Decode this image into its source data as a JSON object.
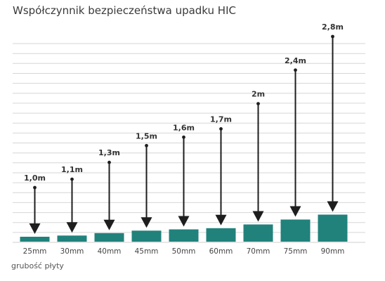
{
  "chart_data": {
    "type": "bar",
    "title": "Współczynnik bezpieczeństwa upadku HIC",
    "xlabel": "grubość płyty",
    "ylabel": "",
    "categories": [
      "25mm",
      "30mm",
      "40mm",
      "45mm",
      "50mm",
      "60mm",
      "70mm",
      "75mm",
      "90mm"
    ],
    "values": [
      1.0,
      1.1,
      1.3,
      1.5,
      1.6,
      1.7,
      2.0,
      2.4,
      2.8
    ],
    "value_labels": [
      "1,0m",
      "1,1m",
      "1,3m",
      "1,5m",
      "1,6m",
      "1,7m",
      "2m",
      "2,4m",
      "2,8m"
    ],
    "ylim": [
      0,
      2.9
    ],
    "grid": true,
    "colors": {
      "bar": "#21827c",
      "grid": "#d6d6d6",
      "arrow": "#1e1e1e",
      "axis": "#cfcfcf"
    }
  }
}
